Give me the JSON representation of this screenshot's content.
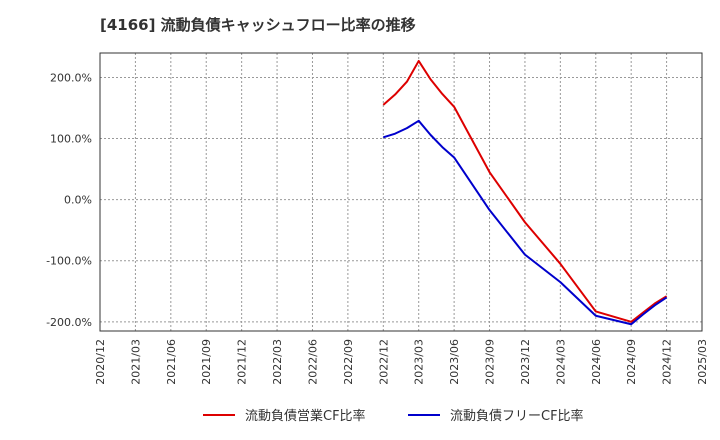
{
  "chart_data": {
    "type": "line",
    "title": "[4166]  流動負債キャッシュフロー比率の推移",
    "xlabel": "",
    "ylabel": "",
    "x_ticks": [
      "2020/12",
      "2021/03",
      "2021/06",
      "2021/09",
      "2021/12",
      "2022/03",
      "2022/06",
      "2022/09",
      "2022/12",
      "2023/03",
      "2023/06",
      "2023/09",
      "2023/12",
      "2024/03",
      "2024/06",
      "2024/09",
      "2024/12",
      "2025/03"
    ],
    "y_ticks": [
      200,
      100,
      0,
      -100,
      -200
    ],
    "y_tick_labels": [
      "200.0%",
      "100.0%",
      "0.0%",
      "-100.0%",
      "-200.0%"
    ],
    "ylim": [
      -215,
      240
    ],
    "grid": true,
    "legend_position": "bottom",
    "x": [
      "2022/12",
      "2023/01",
      "2023/02",
      "2023/03",
      "2023/04",
      "2023/05",
      "2023/06",
      "2023/09",
      "2023/12",
      "2024/03",
      "2024/06",
      "2024/09",
      "2024/10",
      "2024/11",
      "2024/12"
    ],
    "series": [
      {
        "name": "流動負債営業CF比率",
        "color": "#dd0000",
        "values": [
          155,
          172,
          193,
          227,
          197,
          173,
          152,
          45,
          -37,
          -105,
          -183,
          -200,
          -185,
          -170,
          -158
        ]
      },
      {
        "name": "流動負債フリーCF比率",
        "color": "#0000cc",
        "values": [
          102,
          108,
          117,
          129,
          106,
          86,
          69,
          -17,
          -90,
          -135,
          -190,
          -204,
          -188,
          -173,
          -160
        ]
      }
    ]
  }
}
